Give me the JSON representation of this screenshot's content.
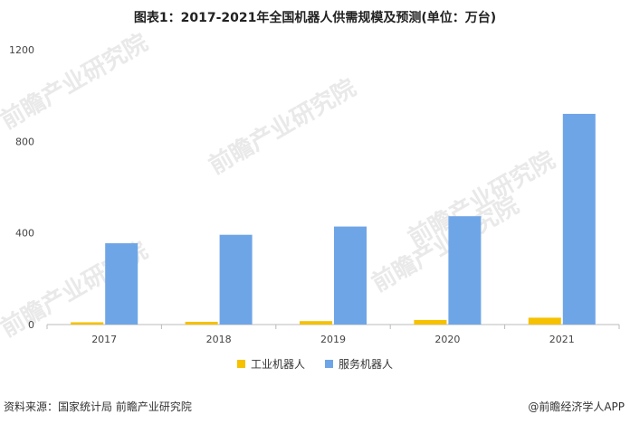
{
  "chart_data": {
    "type": "bar",
    "title": "图表1：2017-2021年全国机器人供需规模及预测(单位：万台)",
    "categories": [
      "2017",
      "2018",
      "2019",
      "2020",
      "2021"
    ],
    "series": [
      {
        "name": "工业机器人",
        "color": "#f5c100",
        "values": [
          10,
          12,
          15,
          20,
          30
        ]
      },
      {
        "name": "服务机器人",
        "color": "#6ea5e7",
        "values": [
          355,
          392,
          428,
          473,
          920
        ]
      }
    ],
    "ylim": [
      0,
      1200
    ],
    "yticks": [
      0,
      400,
      800,
      1200
    ],
    "grid": false,
    "legend_position": "bottom"
  },
  "footer": {
    "source": "资料来源：国家统计局 前瞻产业研究院",
    "brand": "@前瞻经济学人APP"
  },
  "watermark": {
    "text": "前瞻产业研究院"
  }
}
